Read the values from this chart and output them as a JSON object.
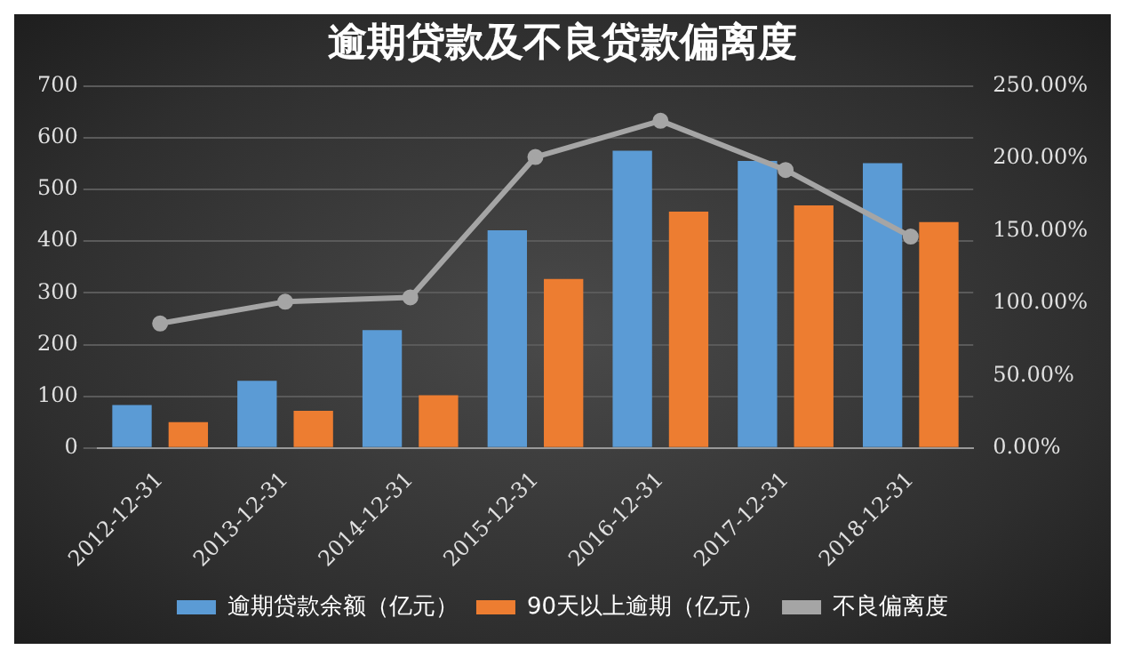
{
  "chart_data": {
    "type": "bar",
    "title": "逾期贷款及不良贷款偏离度",
    "categories": [
      "2012-12-31",
      "2013-12-31",
      "2014-12-31",
      "2015-12-31",
      "2016-12-31",
      "2017-12-31",
      "2018-12-31"
    ],
    "series": [
      {
        "name": "逾期贷款余额（亿元）",
        "color": "#5b9bd5",
        "values": [
          83,
          130,
          228,
          421,
          575,
          555,
          551
        ]
      },
      {
        "name": "90天以上逾期（亿元）",
        "color": "#ed7d31",
        "values": [
          50,
          72,
          102,
          327,
          457,
          469,
          437
        ]
      },
      {
        "name": "不良偏离度",
        "type": "line",
        "axis": "y2",
        "color": "#a5a5a5",
        "marker": "circle",
        "values": [
          86,
          101,
          104,
          201,
          226,
          192,
          146
        ]
      }
    ],
    "ylim": [
      0,
      700
    ],
    "yticks": [
      0,
      100,
      200,
      300,
      400,
      500,
      600,
      700
    ],
    "y2lim": [
      0,
      250
    ],
    "y2ticks": [
      {
        "value": 0,
        "label": "0.00%"
      },
      {
        "value": 50,
        "label": "50.00%"
      },
      {
        "value": 100,
        "label": "100.00%"
      },
      {
        "value": 150,
        "label": "150.00%"
      },
      {
        "value": 200,
        "label": "200.00%"
      },
      {
        "value": 250,
        "label": "250.00%"
      }
    ],
    "grid": "y",
    "legend": "bottom"
  }
}
